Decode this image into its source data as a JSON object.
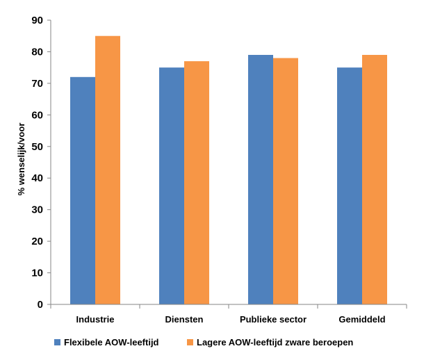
{
  "chart_data": {
    "type": "bar",
    "title": "",
    "xlabel": "",
    "ylabel": "% wenselijk/voor",
    "ylim": [
      0,
      90
    ],
    "yticks": [
      0,
      10,
      20,
      30,
      40,
      50,
      60,
      70,
      80,
      90
    ],
    "grid": false,
    "legend_position": "bottom",
    "categories": [
      "Industrie",
      "Diensten",
      "Publieke sector",
      "Gemiddeld"
    ],
    "series": [
      {
        "name": "Flexibele AOW-leeftijd",
        "color": "#4F81BD",
        "values": [
          72,
          75,
          79,
          75
        ]
      },
      {
        "name": "Lagere AOW-leeftijd zware beroepen",
        "color": "#F79646",
        "values": [
          85,
          77,
          78,
          79
        ]
      }
    ]
  }
}
